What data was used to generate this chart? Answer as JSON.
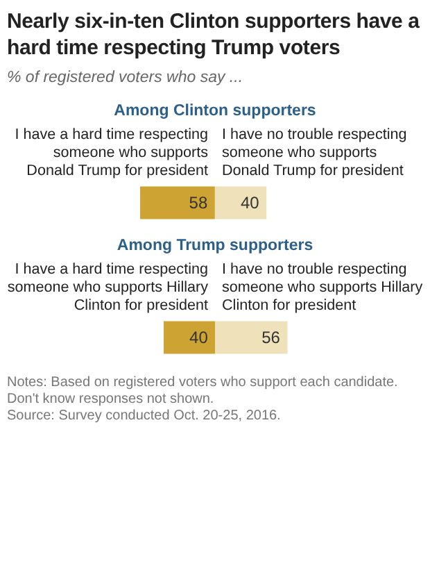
{
  "chart_data": [
    {
      "type": "bar",
      "orientation": "horizontal",
      "title": "Nearly six-in-ten Clinton supporters have a hard time respecting Trump voters",
      "subtitle": "% of registered voters who say ...",
      "annotations": [
        "Among Clinton supporters"
      ],
      "categories": [
        null
      ],
      "data_labels": true,
      "stacked": true,
      "series": [
        {
          "name": "I have a hard time respecting someone who supports Donald Trump for president",
          "color": "#cda434",
          "values": [
            58
          ]
        },
        {
          "name": "I have no trouble respecting someone who supports Donald Trump for president",
          "color": "#efe2ba",
          "values": [
            40
          ]
        }
      ]
    },
    {
      "type": "bar",
      "orientation": "horizontal",
      "title": "Among Trump supporters",
      "annotations": [
        "Notes: Based on registered voters who support each candidate. Don't know responses not shown.",
        "Source: Survey conducted Oct. 20-25, 2016."
      ],
      "categories": [
        null
      ],
      "data_labels": true,
      "stacked": true,
      "series": [
        {
          "name": "I have a hard time respecting someone who supports Hillary Clinton for president",
          "color": "#cda434",
          "values": [
            40
          ]
        },
        {
          "name": "I have no trouble respecting someone who supports Hillary Clinton for president",
          "color": "#efe2ba",
          "values": [
            56
          ]
        }
      ]
    }
  ]
}
